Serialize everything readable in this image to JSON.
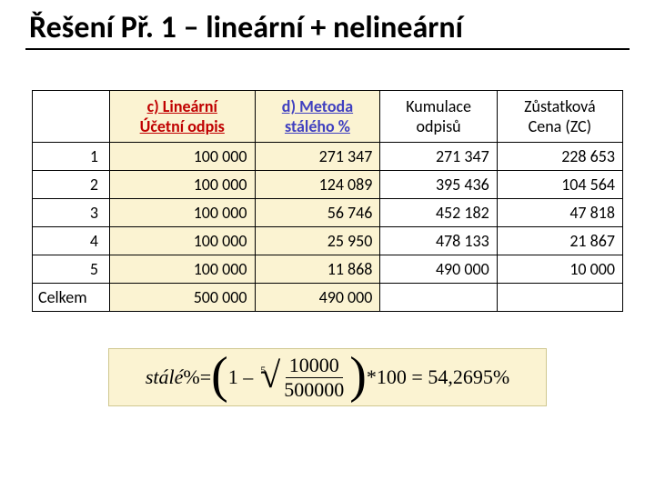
{
  "title": "Řešení Př. 1 – lineární + nelineární",
  "table": {
    "headers": {
      "col0": "",
      "col1_line1": "c) Lineární",
      "col1_line2": "Účetní odpis",
      "col2_line1": "d) Metoda",
      "col2_line2": "stálého %",
      "col3_line1": "Kumulace",
      "col3_line2": "odpisů",
      "col4_line1": "Zůstatková",
      "col4_line2": "Cena (ZC)"
    },
    "rows": [
      {
        "n": "1",
        "c": "100 000",
        "d": "271 347",
        "k": "271 347",
        "z": "228 653"
      },
      {
        "n": "2",
        "c": "100 000",
        "d": "124 089",
        "k": "395 436",
        "z": "104 564"
      },
      {
        "n": "3",
        "c": "100 000",
        "d": "56 746",
        "k": "452 182",
        "z": "47 818"
      },
      {
        "n": "4",
        "c": "100 000",
        "d": "25 950",
        "k": "478 133",
        "z": "21 867"
      },
      {
        "n": "5",
        "c": "100 000",
        "d": "11 868",
        "k": "490 000",
        "z": "10 000"
      }
    ],
    "total": {
      "label": "Celkem",
      "c": "500 000",
      "d": "490 000",
      "k": "",
      "z": ""
    }
  },
  "formula": {
    "lhs": "stálé",
    "pct1": "%",
    "eq1": " = ",
    "one_minus": "1 – ",
    "root_index": "5",
    "frac_num": "10000",
    "frac_den": "500000",
    "times100": " *100 = 54,2695",
    "pct2": "  %"
  },
  "colors": {
    "highlight_bg": "#fbf3d2",
    "header_c": "#c00000",
    "header_d": "#4040c0",
    "border": "#000000"
  }
}
